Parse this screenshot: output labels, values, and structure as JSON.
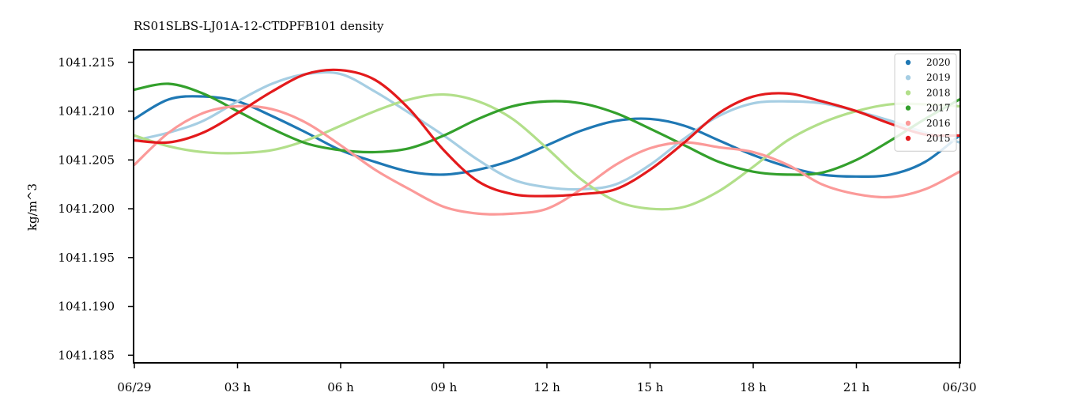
{
  "chart_data": {
    "type": "line",
    "title": "RS01SLBS-LJ01A-12-CTDPFB101 density",
    "xlabel": "",
    "ylabel": "kg/m^3",
    "xlim": [
      0,
      24
    ],
    "ylim": [
      1041.1843,
      1041.2162
    ],
    "x_ticks": [
      {
        "value": 0,
        "label": "06/29"
      },
      {
        "value": 3,
        "label": "03 h"
      },
      {
        "value": 6,
        "label": "06 h"
      },
      {
        "value": 9,
        "label": "09 h"
      },
      {
        "value": 12,
        "label": "12 h"
      },
      {
        "value": 15,
        "label": "15 h"
      },
      {
        "value": 18,
        "label": "18 h"
      },
      {
        "value": 21,
        "label": "21 h"
      },
      {
        "value": 24,
        "label": "06/30"
      }
    ],
    "y_ticks": [
      {
        "value": 1041.185,
        "label": "1041.185"
      },
      {
        "value": 1041.19,
        "label": "1041.190"
      },
      {
        "value": 1041.195,
        "label": "1041.195"
      },
      {
        "value": 1041.2,
        "label": "1041.200"
      },
      {
        "value": 1041.205,
        "label": "1041.205"
      },
      {
        "value": 1041.21,
        "label": "1041.210"
      },
      {
        "value": 1041.215,
        "label": "1041.215"
      }
    ],
    "grid": false,
    "legend_position": "top-right",
    "x_unit": "hours since 06/29 00:00",
    "series": [
      {
        "name": "2020",
        "color": "#1f78b4",
        "x": [
          0,
          1,
          2,
          3,
          4,
          5,
          6,
          7,
          8,
          9,
          10,
          11,
          12,
          13,
          14,
          15,
          16,
          17,
          18,
          19,
          20,
          21,
          22,
          23,
          24
        ],
        "y": [
          1041.2092,
          1041.2112,
          1041.2115,
          1041.211,
          1041.2095,
          1041.2078,
          1041.206,
          1041.2048,
          1041.2038,
          1041.2035,
          1041.204,
          1041.205,
          1041.2065,
          1041.208,
          1041.209,
          1041.2092,
          1041.2085,
          1041.207,
          1041.2055,
          1041.2043,
          1041.2035,
          1041.2033,
          1041.2035,
          1041.2048,
          1041.2075
        ]
      },
      {
        "name": "2019",
        "color": "#a6cee3",
        "x": [
          0,
          1,
          2,
          3,
          4,
          5,
          6,
          7,
          8,
          9,
          10,
          11,
          12,
          13,
          14,
          15,
          16,
          17,
          18,
          19,
          20,
          21,
          22,
          23,
          24
        ],
        "y": [
          1041.207,
          1041.2078,
          1041.209,
          1041.211,
          1041.2128,
          1041.2138,
          1041.2138,
          1041.212,
          1041.2098,
          1041.2075,
          1041.205,
          1041.203,
          1041.2022,
          1041.202,
          1041.2025,
          1041.2045,
          1041.2072,
          1041.2095,
          1041.2108,
          1041.211,
          1041.2108,
          1041.21,
          1041.209,
          1041.2078,
          1041.2068
        ]
      },
      {
        "name": "2018",
        "color": "#b2df8a",
        "x": [
          0,
          1,
          2,
          3,
          4,
          5,
          6,
          7,
          8,
          9,
          10,
          11,
          12,
          13,
          14,
          15,
          16,
          17,
          18,
          19,
          20,
          21,
          22,
          23,
          24
        ],
        "y": [
          1041.2075,
          1041.2064,
          1041.2058,
          1041.2057,
          1041.206,
          1041.207,
          1041.2085,
          1041.21,
          1041.2112,
          1041.2117,
          1041.211,
          1041.2092,
          1041.2062,
          1041.203,
          1041.2008,
          1041.2,
          1041.2002,
          1041.2018,
          1041.2043,
          1041.207,
          1041.2088,
          1041.21,
          1041.2107,
          1041.2107,
          1041.2105
        ]
      },
      {
        "name": "2017",
        "color": "#33a02c",
        "x": [
          0,
          1,
          2,
          3,
          4,
          5,
          6,
          7,
          8,
          9,
          10,
          11,
          12,
          13,
          14,
          15,
          16,
          17,
          18,
          19,
          20,
          21,
          22,
          23,
          24
        ],
        "y": [
          1041.2122,
          1041.2128,
          1041.2118,
          1041.21,
          1041.2082,
          1041.2067,
          1041.206,
          1041.2058,
          1041.2062,
          1041.2075,
          1041.2092,
          1041.2105,
          1041.211,
          1041.2108,
          1041.2098,
          1041.2082,
          1041.2065,
          1041.2048,
          1041.2038,
          1041.2035,
          1041.2037,
          1041.205,
          1041.207,
          1041.2092,
          1041.2112
        ]
      },
      {
        "name": "2016",
        "color": "#fb9a99",
        "x": [
          0,
          1,
          2,
          3,
          4,
          5,
          6,
          7,
          8,
          9,
          10,
          11,
          12,
          13,
          14,
          15,
          16,
          17,
          18,
          19,
          20,
          21,
          22,
          23,
          24
        ],
        "y": [
          1041.2045,
          1041.2078,
          1041.2098,
          1041.2105,
          1041.2102,
          1041.2088,
          1041.2065,
          1041.204,
          1041.202,
          1041.2002,
          1041.1995,
          1041.1995,
          1041.2,
          1041.202,
          1041.2045,
          1041.2062,
          1041.2068,
          1041.2063,
          1041.2058,
          1041.2045,
          1041.2025,
          1041.2015,
          1041.2012,
          1041.202,
          1041.2038
        ]
      },
      {
        "name": "2015",
        "color": "#e31a1c",
        "x": [
          0,
          1,
          2,
          3,
          4,
          5,
          6,
          7,
          8,
          9,
          10,
          11,
          12,
          13,
          14,
          15,
          16,
          17,
          18,
          19,
          20,
          21,
          22,
          23,
          24
        ],
        "y": [
          1041.207,
          1041.2068,
          1041.2078,
          1041.2098,
          1041.212,
          1041.2138,
          1041.2142,
          1041.2132,
          1041.2102,
          1041.206,
          1041.2028,
          1041.2015,
          1041.2013,
          1041.2015,
          1041.202,
          1041.204,
          1041.2068,
          1041.2098,
          1041.2115,
          1041.2118,
          1041.211,
          1041.21,
          1041.2087,
          1041.2076,
          1041.2075
        ]
      }
    ]
  }
}
